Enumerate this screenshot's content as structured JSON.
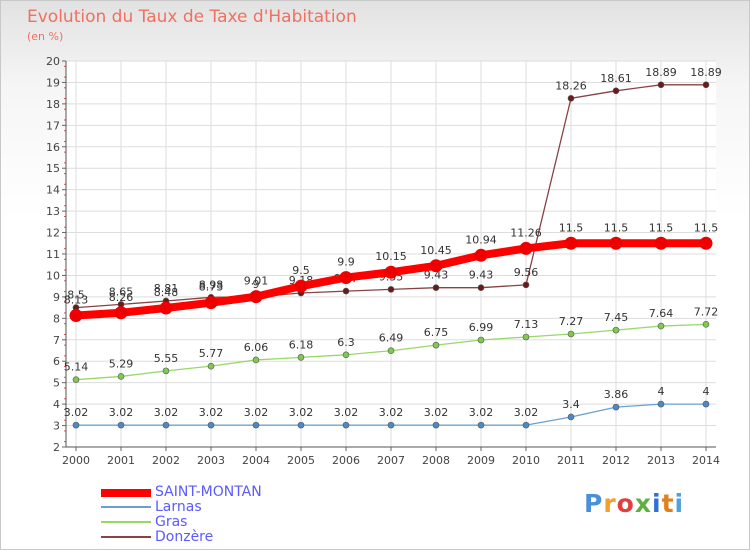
{
  "header": {
    "title": "Evolution du Taux de Taxe d'Habitation",
    "subtitle": "(en %)"
  },
  "brand": {
    "text": "Proxiti",
    "colors": [
      "#4a90d9",
      "#f0a030",
      "#e04040",
      "#60b040",
      "#3070d0",
      "#e08020",
      "#50a0e0"
    ]
  },
  "chart_data": {
    "type": "line",
    "x": [
      2000,
      2001,
      2002,
      2003,
      2004,
      2005,
      2006,
      2007,
      2008,
      2009,
      2010,
      2011,
      2012,
      2013,
      2014
    ],
    "ylim": [
      2,
      20
    ],
    "yticks": [
      2,
      3,
      4,
      5,
      6,
      7,
      8,
      9,
      10,
      11,
      12,
      13,
      14,
      15,
      16,
      17,
      18,
      19,
      20
    ],
    "grid": true,
    "legend_position": "bottom-left",
    "series": [
      {
        "name": "SAINT-MONTAN",
        "color": "#ff0000",
        "marker": "#ee0000",
        "values": [
          8.13,
          8.26,
          8.48,
          8.73,
          9.01,
          9.5,
          9.9,
          10.15,
          10.45,
          10.94,
          11.26,
          11.5,
          11.5,
          11.5,
          11.5
        ],
        "labels": [
          "8.13",
          "8.26",
          "8.48",
          "8.73",
          "9.01",
          "9.5",
          "9.9",
          "10.15",
          "10.45",
          "10.94",
          "11.26",
          "11.5",
          "11.5",
          "11.5",
          "11.5"
        ]
      },
      {
        "name": "Larnas",
        "color": "#6aa0d0",
        "marker": "#4a8ac8",
        "values": [
          3.02,
          3.02,
          3.02,
          3.02,
          3.02,
          3.02,
          3.02,
          3.02,
          3.02,
          3.02,
          3.02,
          3.4,
          3.86,
          4,
          4
        ],
        "labels": [
          "3.02",
          "3.02",
          "3.02",
          "3.02",
          "3.02",
          "3.02",
          "3.02",
          "3.02",
          "3.02",
          "3.02",
          "3.02",
          "3.4",
          "3.86",
          "4",
          "4"
        ]
      },
      {
        "name": "Gras",
        "color": "#98d868",
        "marker": "#80c850",
        "values": [
          5.14,
          5.29,
          5.55,
          5.77,
          6.06,
          6.18,
          6.3,
          6.49,
          6.75,
          6.99,
          7.13,
          7.27,
          7.45,
          7.64,
          7.72
        ],
        "labels": [
          "5.14",
          "5.29",
          "5.55",
          "5.77",
          "6.06",
          "6.18",
          "6.3",
          "6.49",
          "6.75",
          "6.99",
          "7.13",
          "7.27",
          "7.45",
          "7.64",
          "7.72"
        ]
      },
      {
        "name": "Donzère",
        "color": "#884444",
        "marker": "#6a1a1a",
        "values": [
          8.5,
          8.65,
          8.81,
          8.98,
          9,
          9.18,
          9.27,
          9.35,
          9.43,
          9.43,
          9.56,
          18.26,
          18.61,
          18.89,
          18.89
        ],
        "labels": [
          "8.5",
          "8.65",
          "8.81",
          "8.98",
          "9",
          "9.18",
          "9.27",
          "9.35",
          "9.43",
          "9.43",
          "9.56",
          "18.26",
          "18.61",
          "18.89",
          "18.89"
        ]
      }
    ]
  }
}
